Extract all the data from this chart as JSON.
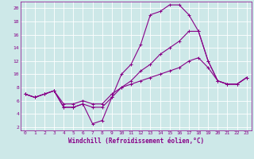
{
  "title": "",
  "xlabel": "Windchill (Refroidissement éolien,°C)",
  "ylabel": "",
  "bg_color": "#cde8e8",
  "line_color": "#880088",
  "grid_color": "#ffffff",
  "xlim": [
    -0.5,
    23.5
  ],
  "ylim": [
    1.5,
    21.0
  ],
  "yticks": [
    2,
    4,
    6,
    8,
    10,
    12,
    14,
    16,
    18,
    20
  ],
  "xticks": [
    0,
    1,
    2,
    3,
    4,
    5,
    6,
    7,
    8,
    9,
    10,
    11,
    12,
    13,
    14,
    15,
    16,
    17,
    18,
    19,
    20,
    21,
    22,
    23
  ],
  "series": [
    {
      "x": [
        0,
        1,
        2,
        3,
        4,
        5,
        6,
        7,
        8,
        9,
        10,
        11,
        12,
        13,
        14,
        15,
        16,
        17,
        18,
        19,
        20,
        21,
        22,
        23
      ],
      "y": [
        7,
        6.5,
        7,
        7.5,
        5,
        5,
        5.5,
        2.5,
        3.0,
        6.5,
        10.0,
        11.5,
        14.5,
        19.0,
        19.5,
        20.5,
        20.5,
        19.0,
        16.5,
        12.0,
        9.0,
        8.5,
        8.5,
        9.5
      ]
    },
    {
      "x": [
        0,
        1,
        2,
        3,
        4,
        5,
        6,
        7,
        8,
        9,
        10,
        11,
        12,
        13,
        14,
        15,
        16,
        17,
        18,
        19,
        20,
        21,
        22,
        23
      ],
      "y": [
        7,
        6.5,
        7,
        7.5,
        5,
        5,
        5.5,
        5.0,
        5.0,
        6.5,
        8.0,
        9.0,
        10.5,
        11.5,
        13.0,
        14.0,
        15.0,
        16.5,
        16.5,
        12.0,
        9.0,
        8.5,
        8.5,
        9.5
      ]
    },
    {
      "x": [
        0,
        1,
        2,
        3,
        4,
        5,
        6,
        7,
        8,
        9,
        10,
        11,
        12,
        13,
        14,
        15,
        16,
        17,
        18,
        19,
        20,
        21,
        22,
        23
      ],
      "y": [
        7,
        6.5,
        7,
        7.5,
        5.5,
        5.5,
        6.0,
        5.5,
        5.5,
        7.0,
        8.0,
        8.5,
        9.0,
        9.5,
        10.0,
        10.5,
        11.0,
        12.0,
        12.5,
        11.0,
        9.0,
        8.5,
        8.5,
        9.5
      ]
    }
  ],
  "tick_fontsize": 4.5,
  "xlabel_fontsize": 5.5,
  "linewidth": 0.8,
  "markersize": 2.5
}
